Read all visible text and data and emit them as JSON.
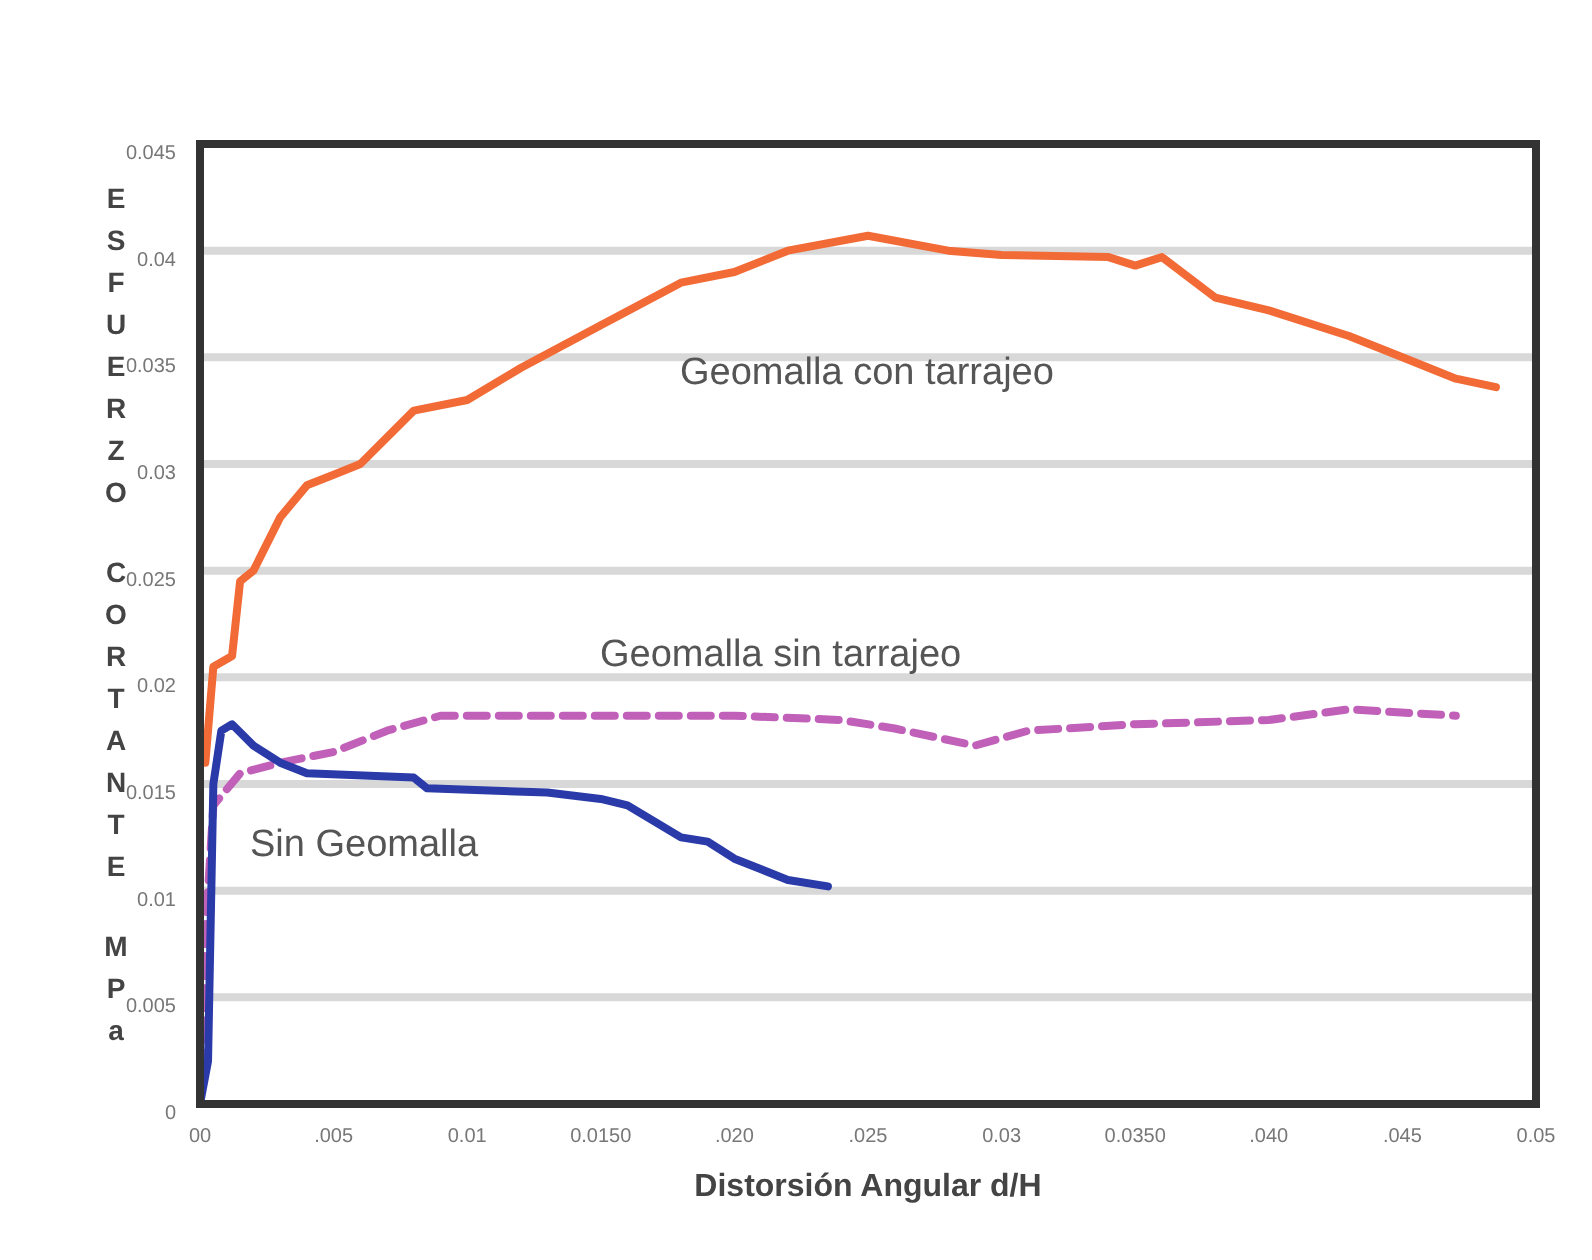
{
  "chart_data": {
    "type": "line",
    "xlabel": "Distorsión Angular   d/H",
    "ylabel": "ESFUERZO CORTANTE MPa",
    "xlim": [
      0,
      0.05
    ],
    "ylim": [
      0,
      0.045
    ],
    "xticks": [
      {
        "value": 0,
        "label": "00"
      },
      {
        "value": 0.005,
        "label": ".005"
      },
      {
        "value": 0.01,
        "label": "0.01"
      },
      {
        "value": 0.015,
        "label": "0.0150"
      },
      {
        "value": 0.02,
        "label": ".020"
      },
      {
        "value": 0.025,
        "label": ".025"
      },
      {
        "value": 0.03,
        "label": "0.03"
      },
      {
        "value": 0.035,
        "label": "0.0350"
      },
      {
        "value": 0.04,
        "label": ".040"
      },
      {
        "value": 0.045,
        "label": ".045"
      },
      {
        "value": 0.05,
        "label": "0.05"
      }
    ],
    "yticks": [
      0,
      0.005,
      0.01,
      0.015,
      0.02,
      0.025,
      0.03,
      0.035,
      0.04,
      0.045
    ],
    "grid": "y",
    "marker": "none",
    "legend": false,
    "series": [
      {
        "name": "Geomalla con tarrajeo",
        "color": "#f26a35",
        "line_style": "solid",
        "x": [
          0.0002,
          0.0005,
          0.0012,
          0.0015,
          0.002,
          0.003,
          0.004,
          0.005,
          0.006,
          0.008,
          0.01,
          0.012,
          0.015,
          0.018,
          0.02,
          0.022,
          0.025,
          0.028,
          0.03,
          0.034,
          0.035,
          0.036,
          0.038,
          0.04,
          0.043,
          0.045,
          0.047,
          0.0485
        ],
        "values": [
          0.016,
          0.0205,
          0.021,
          0.0245,
          0.025,
          0.0275,
          0.029,
          0.0295,
          0.03,
          0.0325,
          0.033,
          0.0345,
          0.0365,
          0.0385,
          0.039,
          0.04,
          0.0407,
          0.04,
          0.0398,
          0.0397,
          0.0393,
          0.0397,
          0.0378,
          0.0372,
          0.036,
          0.035,
          0.034,
          0.0336
        ]
      },
      {
        "name": "Geomalla sin tarrajeo",
        "color": "#c060b8",
        "line_style": "dashed",
        "x": [
          0,
          0.0002,
          0.0005,
          0.0015,
          0.003,
          0.005,
          0.007,
          0.009,
          0.012,
          0.02,
          0.024,
          0.026,
          0.029,
          0.031,
          0.035,
          0.04,
          0.043,
          0.047
        ],
        "values": [
          0,
          0.008,
          0.014,
          0.0155,
          0.016,
          0.0165,
          0.0175,
          0.0182,
          0.0182,
          0.0182,
          0.018,
          0.0176,
          0.0168,
          0.0175,
          0.0178,
          0.018,
          0.0185,
          0.0182
        ]
      },
      {
        "name": "Sin Geomalla",
        "color": "#2a3aa8",
        "line_style": "solid",
        "x": [
          0,
          0.0003,
          0.0005,
          0.0008,
          0.0012,
          0.002,
          0.003,
          0.004,
          0.008,
          0.0085,
          0.013,
          0.015,
          0.016,
          0.018,
          0.019,
          0.02,
          0.021,
          0.022,
          0.0235
        ],
        "values": [
          0,
          0.002,
          0.015,
          0.0175,
          0.0178,
          0.0168,
          0.016,
          0.0155,
          0.0153,
          0.0148,
          0.0146,
          0.0143,
          0.014,
          0.0125,
          0.0123,
          0.0115,
          0.011,
          0.0105,
          0.0102
        ]
      }
    ]
  }
}
